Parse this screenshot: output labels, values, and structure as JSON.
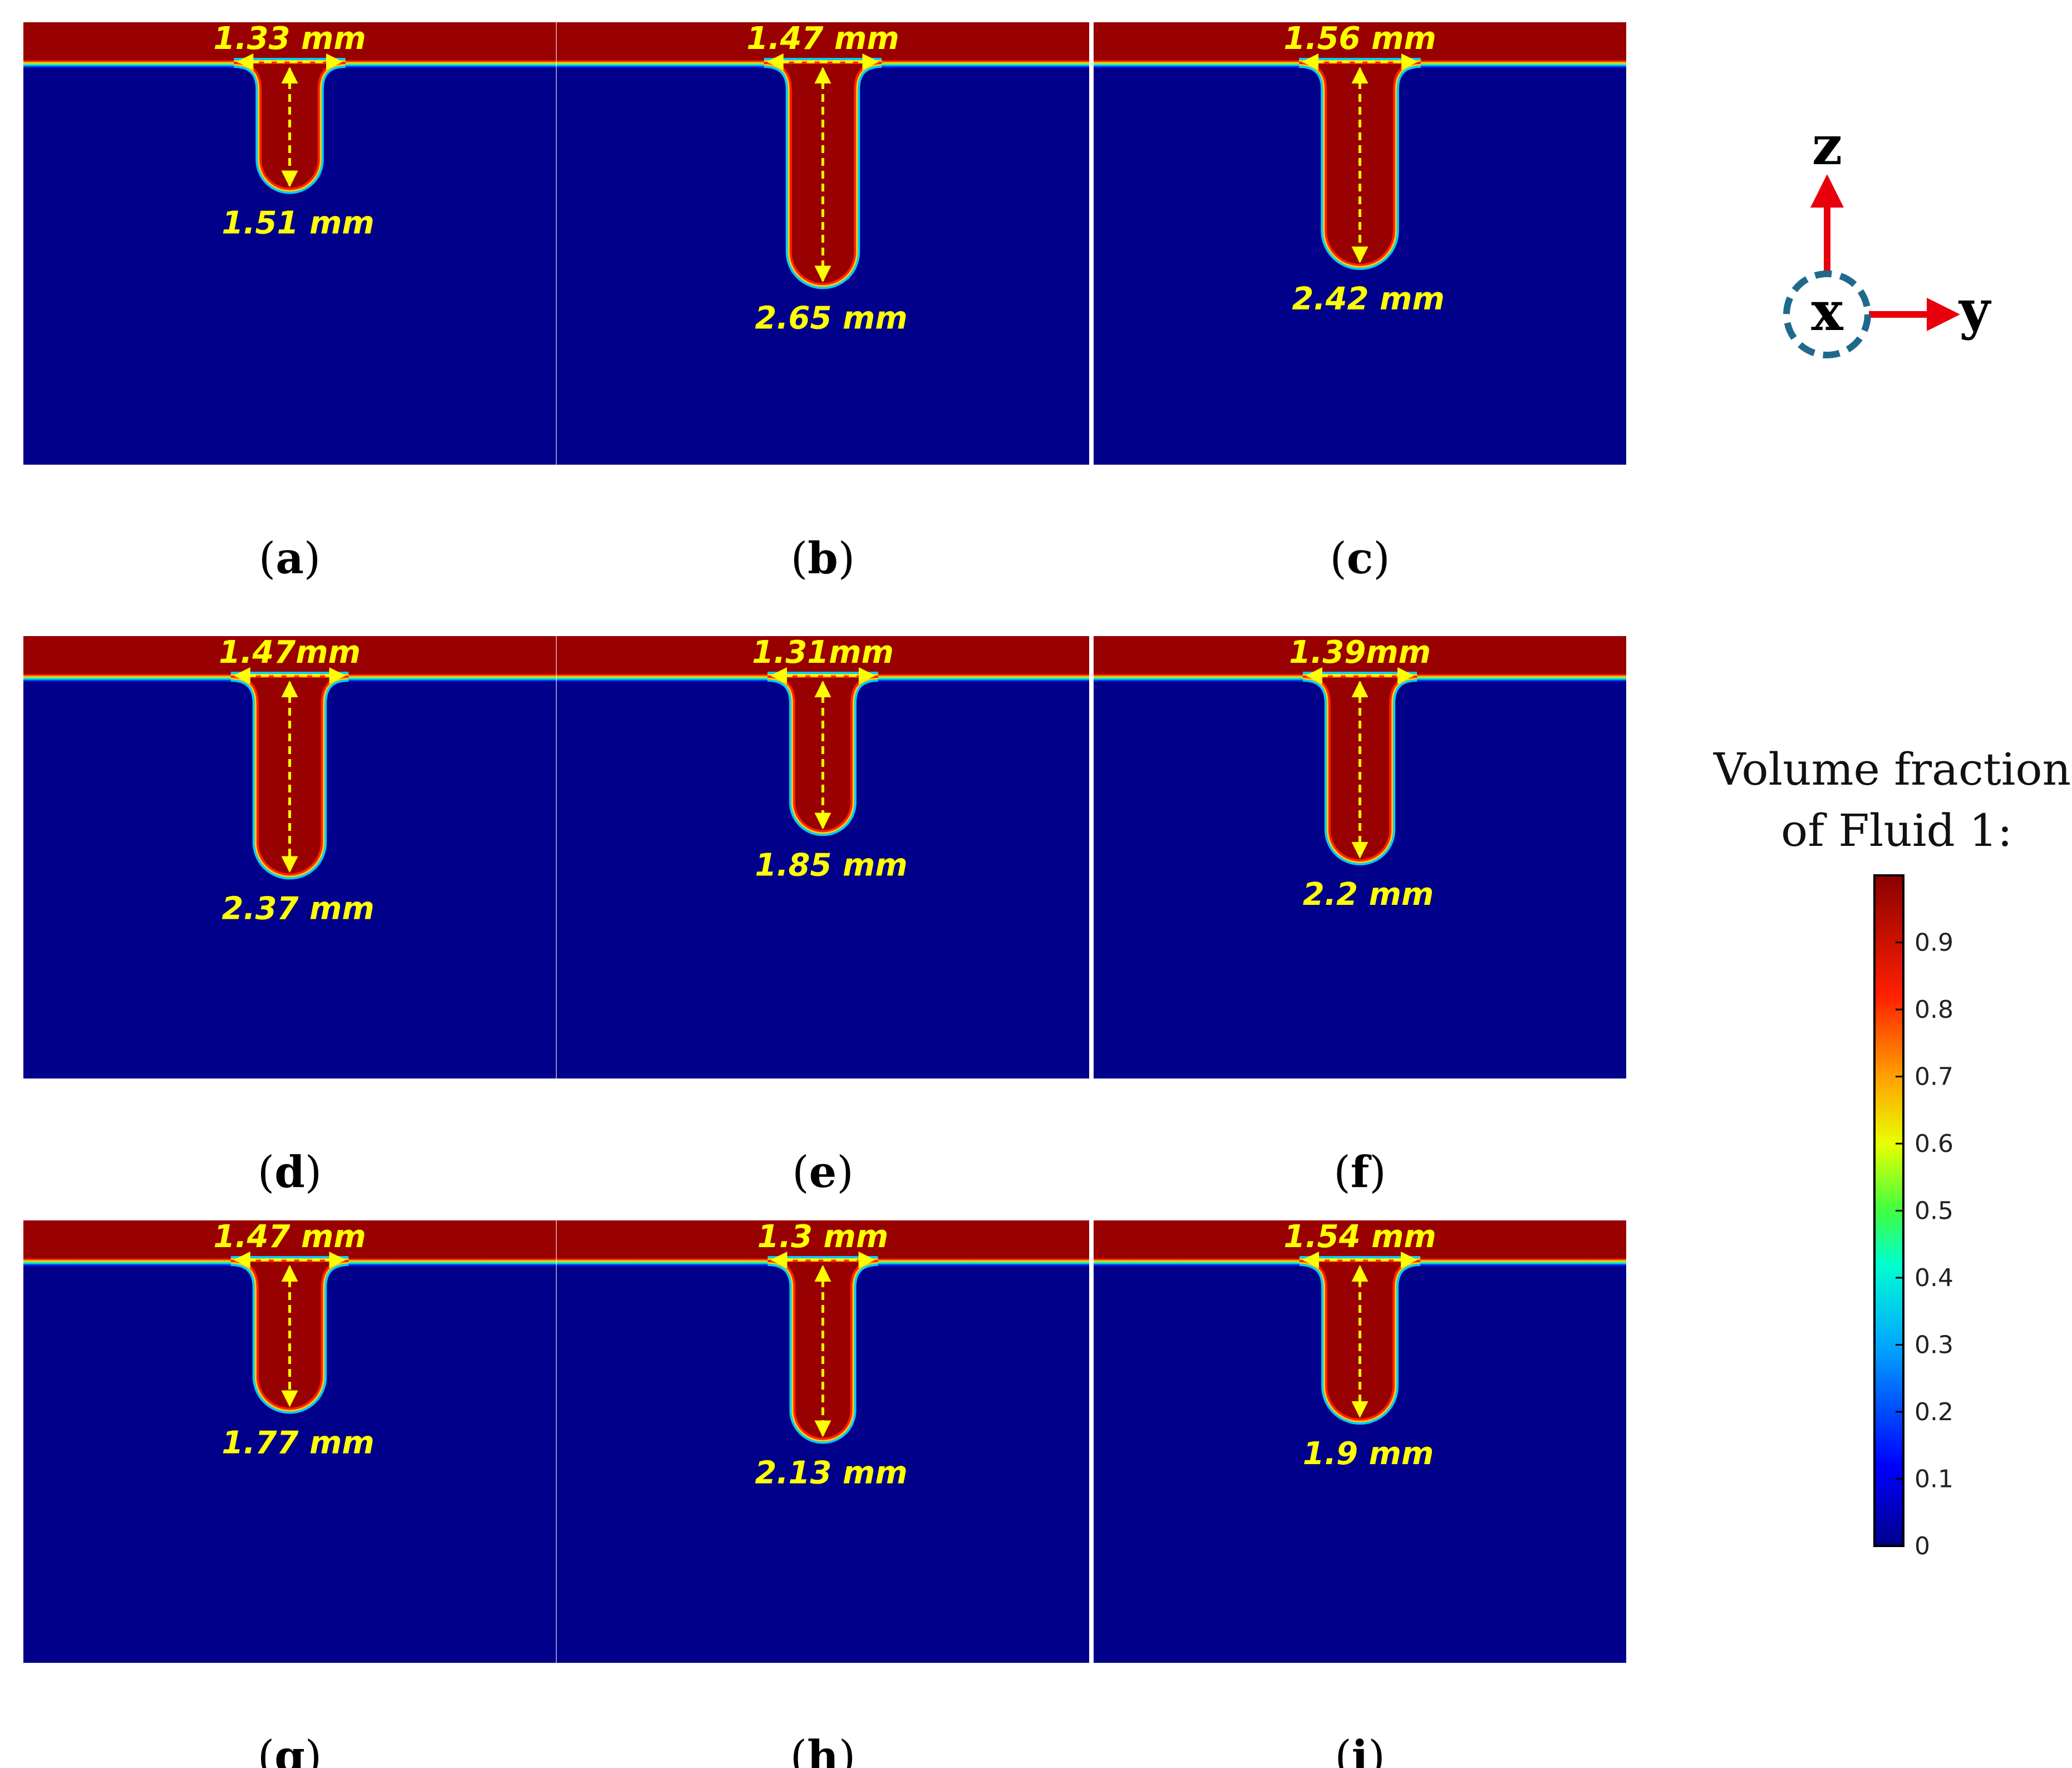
{
  "figure": {
    "panels": [
      {
        "id": "a",
        "caption_letter": "a",
        "width": "1.33 mm",
        "depth": "1.51 mm",
        "width_mm": 1.33,
        "depth_mm": 1.51
      },
      {
        "id": "b",
        "caption_letter": "b",
        "width": "1.47 mm",
        "depth": "2.65 mm",
        "width_mm": 1.47,
        "depth_mm": 2.65
      },
      {
        "id": "c",
        "caption_letter": "c",
        "width": "1.56 mm",
        "depth": "2.42 mm",
        "width_mm": 1.56,
        "depth_mm": 2.42
      },
      {
        "id": "d",
        "caption_letter": "d",
        "width": "1.47mm",
        "depth": "2.37 mm",
        "width_mm": 1.47,
        "depth_mm": 2.37
      },
      {
        "id": "e",
        "caption_letter": "e",
        "width": "1.31mm",
        "depth": "1.85 mm",
        "width_mm": 1.31,
        "depth_mm": 1.85
      },
      {
        "id": "f",
        "caption_letter": "f",
        "width": "1.39mm",
        "depth": "2.2 mm",
        "width_mm": 1.39,
        "depth_mm": 2.2
      },
      {
        "id": "g",
        "caption_letter": "g",
        "width": "1.47 mm",
        "depth": "1.77 mm",
        "width_mm": 1.47,
        "depth_mm": 1.77
      },
      {
        "id": "h",
        "caption_letter": "h",
        "width": "1.3 mm",
        "depth": "2.13 mm",
        "width_mm": 1.3,
        "depth_mm": 2.13
      },
      {
        "id": "i",
        "caption_letter": "i",
        "width": "1.54 mm",
        "depth": "1.9 mm",
        "width_mm": 1.54,
        "depth_mm": 1.9
      }
    ],
    "axes": {
      "z": "z",
      "x": "x",
      "y": "y"
    },
    "colorbar": {
      "title_line1": "Volume fraction",
      "title_line2": "of Fluid 1:",
      "ticks": [
        "0.9",
        "0.8",
        "0.7",
        "0.6",
        "0.5",
        "0.4",
        "0.3",
        "0.2",
        "0.1",
        "0"
      ],
      "tick_values": [
        0.9,
        0.8,
        0.7,
        0.6,
        0.5,
        0.4,
        0.3,
        0.2,
        0.1,
        0
      ],
      "range": [
        0,
        1
      ]
    },
    "colors": {
      "fluid1": "#990000",
      "fluid2": "#00008b",
      "annotation": "#ffff00",
      "axis_arrow": "#e8000c",
      "x_circle": "#1f6a8c"
    }
  }
}
